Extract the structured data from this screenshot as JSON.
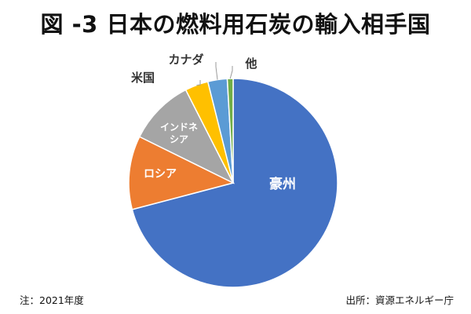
{
  "chart_data": {
    "type": "pie",
    "title": "図 -3 日本の燃料用石炭の輸入相手国",
    "slices": [
      {
        "label": "豪州",
        "value": 70.9,
        "color": "#4472C4"
      },
      {
        "label": "ロシア",
        "value": 11.4,
        "color": "#ED7D31"
      },
      {
        "label": "インドネシア",
        "value": 10.2,
        "color": "#A5A5A5"
      },
      {
        "label": "米国",
        "value": 3.6,
        "color": "#FFC000"
      },
      {
        "label": "カナダ",
        "value": 3.0,
        "color": "#5B9BD5"
      },
      {
        "label": "他",
        "value": 0.9,
        "color": "#70AD47"
      }
    ]
  },
  "footer": {
    "note": "注：2021年度",
    "source": "出所：資源エネルギー庁"
  }
}
